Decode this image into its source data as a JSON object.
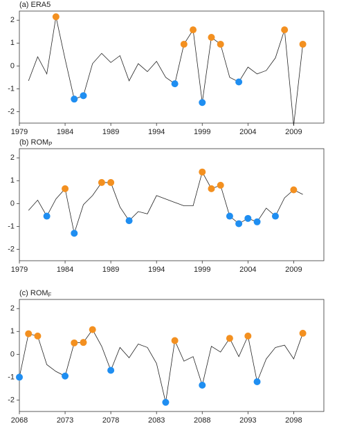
{
  "chart_data": [
    {
      "type": "line",
      "title": "(a) ERA5",
      "line_color": "#222222",
      "x": [
        1980,
        1981,
        1982,
        1983,
        1984,
        1985,
        1986,
        1987,
        1988,
        1989,
        1990,
        1991,
        1992,
        1993,
        1994,
        1995,
        1996,
        1997,
        1998,
        1999,
        2000,
        2001,
        2002,
        2003,
        2004,
        2005,
        2006,
        2007,
        2008,
        2009,
        2010
      ],
      "values": [
        -0.65,
        0.4,
        -0.35,
        2.15,
        0.3,
        -1.45,
        -1.3,
        0.1,
        0.55,
        0.15,
        0.45,
        -0.65,
        0.1,
        -0.25,
        0.2,
        -0.5,
        -0.78,
        0.95,
        1.58,
        -1.6,
        1.25,
        0.95,
        -0.5,
        -0.7,
        -0.05,
        -0.35,
        -0.2,
        0.35,
        1.58,
        -2.6,
        0.95
      ],
      "marker_colors": [
        null,
        null,
        null,
        "#f39020",
        null,
        "#1f8ef1",
        "#1f8ef1",
        null,
        null,
        null,
        null,
        null,
        null,
        null,
        null,
        null,
        "#1f8ef1",
        "#f39020",
        "#f39020",
        "#1f8ef1",
        "#f39020",
        "#f39020",
        null,
        "#1f8ef1",
        null,
        null,
        null,
        null,
        "#f39020",
        null,
        "#f39020"
      ],
      "xlim": [
        1979,
        2012.3
      ],
      "xticks": [
        1979,
        1984,
        1989,
        1994,
        1999,
        2004,
        2009
      ],
      "ylim": [
        -2.5,
        2.4
      ],
      "yticks": [
        -2,
        -1,
        0,
        1,
        2
      ]
    },
    {
      "type": "line",
      "title": "(b) ROM",
      "title_subscript": "P",
      "line_color": "#222222",
      "x": [
        1980,
        1981,
        1982,
        1983,
        1984,
        1985,
        1986,
        1987,
        1988,
        1989,
        1990,
        1991,
        1992,
        1993,
        1994,
        1995,
        1996,
        1997,
        1998,
        1999,
        2000,
        2001,
        2002,
        2003,
        2004,
        2005,
        2006,
        2007,
        2008,
        2009,
        2010
      ],
      "values": [
        -0.3,
        0.15,
        -0.55,
        0.2,
        0.65,
        -1.3,
        -0.05,
        0.35,
        0.92,
        0.92,
        -0.15,
        -0.75,
        -0.35,
        -0.45,
        0.35,
        0.2,
        0.05,
        -0.1,
        -0.1,
        1.38,
        0.65,
        0.8,
        -0.55,
        -0.88,
        -0.65,
        -0.8,
        -0.2,
        -0.55,
        0.25,
        0.6,
        0.4
      ],
      "marker_colors": [
        null,
        null,
        "#1f8ef1",
        null,
        "#f39020",
        "#1f8ef1",
        null,
        null,
        "#f39020",
        "#f39020",
        null,
        "#1f8ef1",
        null,
        null,
        null,
        null,
        null,
        null,
        null,
        "#f39020",
        "#f39020",
        "#f39020",
        "#1f8ef1",
        "#1f8ef1",
        "#1f8ef1",
        "#1f8ef1",
        null,
        "#1f8ef1",
        null,
        "#f39020",
        null
      ],
      "xlim": [
        1979,
        2012.3
      ],
      "xticks": [
        1979,
        1984,
        1989,
        1994,
        1999,
        2004,
        2009
      ],
      "ylim": [
        -2.5,
        2.4
      ],
      "yticks": [
        -2,
        -1,
        0,
        1,
        2
      ]
    },
    {
      "type": "line",
      "title": "(c) ROM",
      "title_subscript": "F",
      "line_color": "#222222",
      "x": [
        2068,
        2069,
        2070,
        2071,
        2072,
        2073,
        2074,
        2075,
        2076,
        2077,
        2078,
        2079,
        2080,
        2081,
        2082,
        2083,
        2084,
        2085,
        2086,
        2087,
        2088,
        2089,
        2090,
        2091,
        2092,
        2093,
        2094,
        2095,
        2096,
        2097,
        2098,
        2099
      ],
      "values": [
        -1.0,
        0.9,
        0.8,
        -0.45,
        -0.75,
        -0.95,
        0.5,
        0.52,
        1.08,
        0.35,
        -0.7,
        0.3,
        -0.15,
        0.45,
        0.3,
        -0.4,
        -2.1,
        0.6,
        -0.3,
        -0.1,
        -1.35,
        0.35,
        0.1,
        0.7,
        -0.1,
        0.8,
        -1.2,
        -0.2,
        0.3,
        0.4,
        -0.2,
        0.92
      ],
      "marker_colors": [
        "#1f8ef1",
        "#f39020",
        "#f39020",
        null,
        null,
        "#1f8ef1",
        "#f39020",
        "#f39020",
        "#f39020",
        null,
        "#1f8ef1",
        null,
        null,
        null,
        null,
        null,
        "#1f8ef1",
        "#f39020",
        null,
        null,
        "#1f8ef1",
        null,
        null,
        "#f39020",
        null,
        "#f39020",
        "#1f8ef1",
        null,
        null,
        null,
        null,
        "#f39020"
      ],
      "xlim": [
        2068,
        2101.3
      ],
      "xticks": [
        2068,
        2073,
        2078,
        2083,
        2088,
        2093,
        2098
      ],
      "ylim": [
        -2.5,
        2.4
      ],
      "yticks": [
        -2,
        -1,
        0,
        1,
        2
      ]
    }
  ]
}
